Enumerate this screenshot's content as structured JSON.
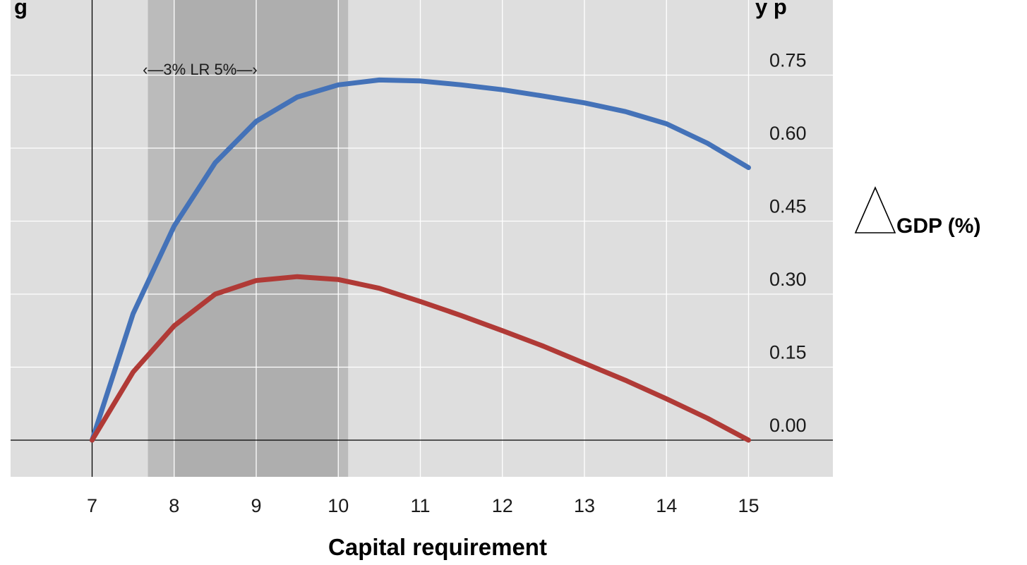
{
  "chart_data": {
    "type": "line",
    "title_fragment_left": "g",
    "title_fragment_right": "y   p",
    "xlabel": "Capital requirement",
    "ylabel": "GDP (%)",
    "ylabel_symbol": "triangle",
    "x": [
      7,
      7.5,
      8,
      8.5,
      9,
      9.5,
      10,
      10.5,
      11,
      11.5,
      12,
      12.5,
      13,
      13.5,
      14,
      14.5,
      15
    ],
    "xlim": [
      6.5,
      16
    ],
    "ylim": [
      -0.07,
      0.87
    ],
    "x_ticks": [
      "7",
      "8",
      "9",
      "10",
      "11",
      "12",
      "13",
      "14",
      "15"
    ],
    "y_ticks": [
      "0.75",
      "0.60",
      "0.45",
      "0.30",
      "0.15",
      "0.00"
    ],
    "y_tick_values": [
      0.75,
      0.6,
      0.45,
      0.3,
      0.15,
      0.0
    ],
    "y_axis_position": "right",
    "grid": true,
    "series": [
      {
        "color": "#4472b8",
        "values": [
          0.0,
          0.26,
          0.44,
          0.57,
          0.655,
          0.705,
          0.73,
          0.74,
          0.738,
          0.73,
          0.72,
          0.707,
          0.693,
          0.675,
          0.65,
          0.61,
          0.56
        ]
      },
      {
        "color": "#b03a36",
        "values": [
          0.0,
          0.14,
          0.235,
          0.3,
          0.328,
          0.336,
          0.33,
          0.312,
          0.285,
          0.256,
          0.225,
          0.193,
          0.158,
          0.123,
          0.085,
          0.045,
          0.0
        ]
      }
    ],
    "shaded_range": {
      "x_start": 7.68,
      "x_end": 10.12,
      "inner_x_start": 8.0,
      "inner_x_end": 10.0,
      "label": "‹—3%   LR  5%—›"
    },
    "colors": {
      "plot_background": "#dedede",
      "band_outer": "#bbbbbb",
      "band_inner": "#aeaeae",
      "gridline": "#ffffff"
    }
  }
}
